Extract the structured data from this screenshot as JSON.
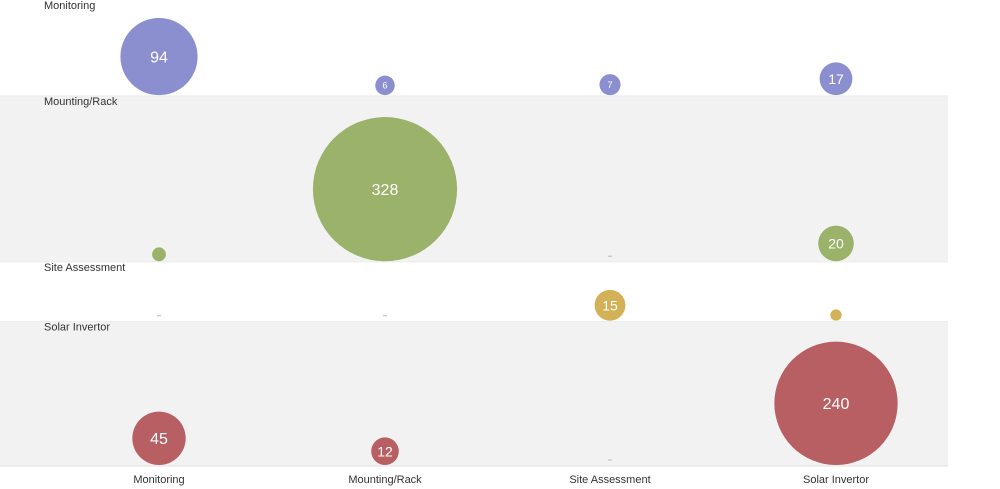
{
  "chart_data": {
    "type": "scatter",
    "subtype": "bubble-matrix",
    "rows": [
      "Monitoring",
      "Mounting/Rack",
      "Site Assessment",
      "Solar Invertor"
    ],
    "columns": [
      "Monitoring",
      "Mounting/Rack",
      "Site Assessment",
      "Solar Invertor"
    ],
    "row_colors": [
      "#8c8fcf",
      "#9bb26a",
      "#d3b157",
      "#b85f63"
    ],
    "band_colors": [
      "#ffffff",
      "#f2f2f2",
      "#ffffff",
      "#f2f2f2"
    ],
    "label_color": "#333333",
    "cells": [
      {
        "row": "Monitoring",
        "col": "Monitoring",
        "value": 94,
        "label": "94"
      },
      {
        "row": "Monitoring",
        "col": "Mounting/Rack",
        "value": 6,
        "label": "6"
      },
      {
        "row": "Monitoring",
        "col": "Site Assessment",
        "value": 7,
        "label": "7"
      },
      {
        "row": "Monitoring",
        "col": "Solar Invertor",
        "value": 17,
        "label": "17"
      },
      {
        "row": "Mounting/Rack",
        "col": "Monitoring",
        "value": 3,
        "label": ""
      },
      {
        "row": "Mounting/Rack",
        "col": "Mounting/Rack",
        "value": 328,
        "label": "328"
      },
      {
        "row": "Mounting/Rack",
        "col": "Site Assessment",
        "value": 0,
        "label": ""
      },
      {
        "row": "Mounting/Rack",
        "col": "Solar Invertor",
        "value": 20,
        "label": "20"
      },
      {
        "row": "Site Assessment",
        "col": "Monitoring",
        "value": 0,
        "label": ""
      },
      {
        "row": "Site Assessment",
        "col": "Mounting/Rack",
        "value": 0,
        "label": ""
      },
      {
        "row": "Site Assessment",
        "col": "Site Assessment",
        "value": 15,
        "label": "15"
      },
      {
        "row": "Site Assessment",
        "col": "Solar Invertor",
        "value": 2,
        "label": ""
      },
      {
        "row": "Solar Invertor",
        "col": "Monitoring",
        "value": 45,
        "label": "45"
      },
      {
        "row": "Solar Invertor",
        "col": "Mounting/Rack",
        "value": 12,
        "label": "12"
      },
      {
        "row": "Solar Invertor",
        "col": "Site Assessment",
        "value": 0,
        "label": ""
      },
      {
        "row": "Solar Invertor",
        "col": "Solar Invertor",
        "value": 240,
        "label": "240"
      }
    ]
  }
}
